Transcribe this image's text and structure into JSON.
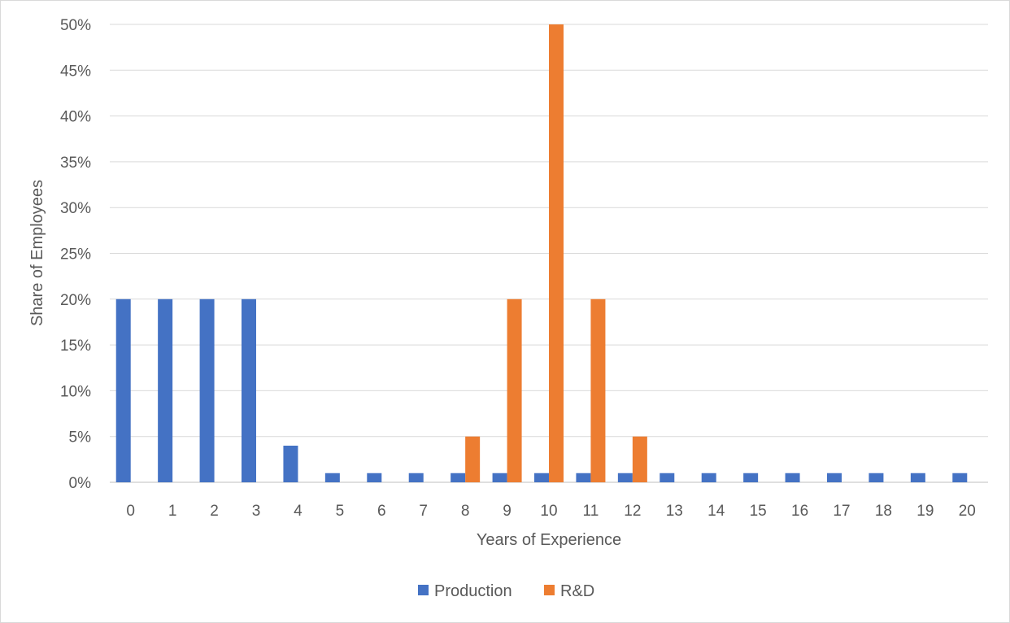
{
  "chart_data": {
    "type": "bar",
    "title": "",
    "xlabel": "Years of Experience",
    "ylabel": "Share of Employees",
    "ylim": [
      0,
      0.5
    ],
    "y_ticks": [
      0,
      0.05,
      0.1,
      0.15,
      0.2,
      0.25,
      0.3,
      0.35,
      0.4,
      0.45,
      0.5
    ],
    "y_tick_labels": [
      "0%",
      "5%",
      "10%",
      "15%",
      "20%",
      "25%",
      "30%",
      "35%",
      "40%",
      "45%",
      "50%"
    ],
    "categories": [
      "0",
      "1",
      "2",
      "3",
      "4",
      "5",
      "6",
      "7",
      "8",
      "9",
      "10",
      "11",
      "12",
      "13",
      "14",
      "15",
      "16",
      "17",
      "18",
      "19",
      "20"
    ],
    "grid": true,
    "legend_position": "bottom",
    "series": [
      {
        "name": "Production",
        "color": "#4472c4",
        "values": [
          0.2,
          0.2,
          0.2,
          0.2,
          0.04,
          0.01,
          0.01,
          0.01,
          0.01,
          0.01,
          0.01,
          0.01,
          0.01,
          0.01,
          0.01,
          0.01,
          0.01,
          0.01,
          0.01,
          0.01,
          0.01
        ]
      },
      {
        "name": "R&D",
        "color": "#ed7d31",
        "values": [
          0,
          0,
          0,
          0,
          0,
          0,
          0,
          0,
          0.05,
          0.2,
          0.5,
          0.2,
          0.05,
          0,
          0,
          0,
          0,
          0,
          0,
          0,
          0
        ]
      }
    ]
  }
}
